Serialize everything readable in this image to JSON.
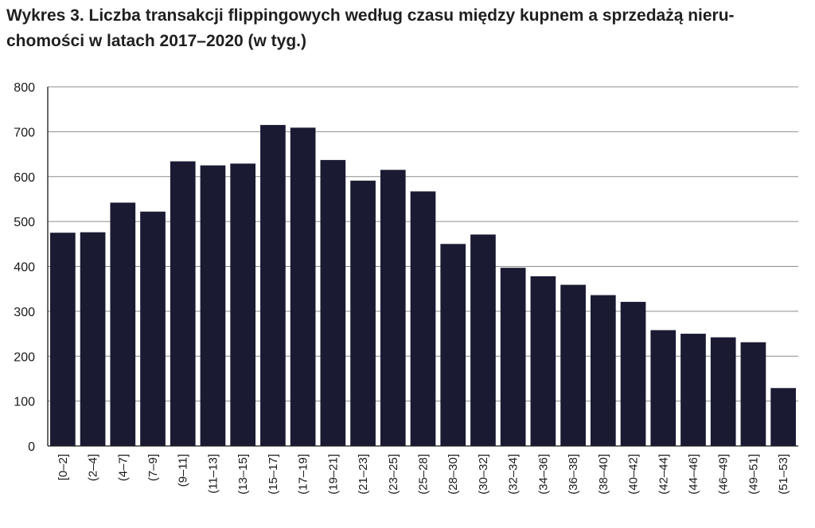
{
  "title_lines": [
    "Wykres 3. Liczba transakcji flippingowych według czasu między kupnem a sprzedażą nieru-",
    "chomości w latach 2017–2020 (w tyg.)"
  ],
  "chart_data": {
    "type": "bar",
    "title": "Wykres 3. Liczba transakcji flippingowych według czasu między kupnem a sprzedażą nieruchomości w latach 2017–2020 (w tyg.)",
    "xlabel": "",
    "ylabel": "",
    "ylim": [
      0,
      800
    ],
    "yticks": [
      0,
      100,
      200,
      300,
      400,
      500,
      600,
      700,
      800
    ],
    "grid": "horizontal",
    "bar_color": "#1b1a33",
    "categories": [
      "[0–2]",
      "(2–4]",
      "(4–7]",
      "(7–9]",
      "(9–11]",
      "(11–13]",
      "(13–15]",
      "(15–17]",
      "(17–19]",
      "(19–21]",
      "(21–23]",
      "(23–25]",
      "(25–28]",
      "(28–30]",
      "(30–32]",
      "(32–34]",
      "(34–36]",
      "(36–38]",
      "(38–40]",
      "(40–42]",
      "(42–44]",
      "(44–46]",
      "(46–49]",
      "(49–51]",
      "(51–53]"
    ],
    "values": [
      475,
      476,
      542,
      522,
      634,
      625,
      629,
      715,
      709,
      637,
      591,
      615,
      567,
      450,
      471,
      397,
      378,
      359,
      336,
      321,
      258,
      250,
      242,
      231,
      129
    ]
  }
}
